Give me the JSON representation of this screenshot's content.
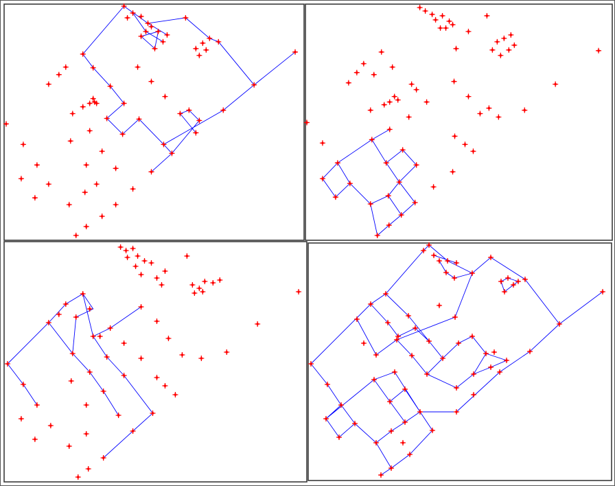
{
  "chart_data": [
    {
      "type": "scatter",
      "xlim": [
        0,
        438
      ],
      "ylim": [
        0,
        345
      ],
      "series": [
        {
          "type": "scatter",
          "color": "#ff0000",
          "x": [
            175,
            180,
            188,
            200,
            210,
            207,
            215,
            225,
            238,
            232,
            200,
            220,
            265,
            300,
            290,
            280,
            295,
            285,
            313,
            115,
            130,
            90,
            80,
            65,
            155,
            130,
            125,
            132,
            115,
            100,
            135,
            175,
            150,
            173,
            197,
            215,
            195,
            235,
            270,
            257,
            285,
            280,
            320,
            365,
            425,
            233,
            245,
            215,
            3,
            28,
            48,
            25,
            65,
            45,
            95,
            97,
            125,
            120,
            143,
            163,
            135,
            118,
            163,
            143,
            120,
            105,
            188
          ],
          "y": [
            342,
            325,
            332,
            327,
            317,
            305,
            312,
            305,
            300,
            290,
            298,
            280,
            325,
            295,
            288,
            280,
            278,
            270,
            290,
            272,
            252,
            253,
            242,
            228,
            225,
            207,
            200,
            202,
            195,
            185,
            200,
            200,
            178,
            155,
            177,
            232,
            253,
            210,
            190,
            185,
            175,
            157,
            190,
            227,
            275,
            140,
            127,
            100,
            170,
            140,
            110,
            90,
            82,
            62,
            52,
            145,
            160,
            110,
            130,
            105,
            82,
            70,
            52,
            35,
            20,
            7,
            75
          ]
        },
        {
          "type": "line",
          "color": "#0000ff",
          "x": [
            175,
            115,
            130,
            155,
            175,
            150,
            173,
            197,
            233,
            245,
            285,
            270,
            257,
            280,
            null,
            175,
            210,
            238,
            null,
            188,
            207,
            232,
            null,
            200,
            225,
            220,
            200,
            null,
            210,
            265,
            300,
            313,
            365,
            425,
            null,
            365,
            320,
            233,
            null,
            245,
            215
          ],
          "y": [
            342,
            272,
            252,
            225,
            200,
            178,
            155,
            177,
            140,
            127,
            175,
            190,
            185,
            157,
            null,
            342,
            317,
            300,
            null,
            332,
            305,
            290,
            null,
            298,
            305,
            280,
            298,
            null,
            317,
            325,
            295,
            290,
            227,
            275,
            null,
            227,
            190,
            140,
            null,
            127,
            100
          ]
        }
      ]
    },
    {
      "type": "scatter",
      "xlim": [
        0,
        448
      ],
      "ylim": [
        0,
        345
      ],
      "series": [
        {
          "type": "scatter",
          "color": "#ff0000",
          "x": [
            167,
            175,
            185,
            200,
            210,
            190,
            197,
            205,
            215,
            238,
            265,
            220,
            280,
            290,
            300,
            273,
            285,
            297,
            305,
            428,
            111,
            85,
            75,
            63,
            100,
            127,
            217,
            155,
            162,
            130,
            123,
            135,
            115,
            95,
            151,
            177,
            238,
            268,
            255,
            282,
            320,
            365,
            2,
            25,
            123,
            97,
            47,
            25,
            65,
            44,
            118,
            142,
            162,
            137,
            95,
            121,
            160,
            140,
            122,
            105,
            218,
            233,
            245,
            215,
            187
          ],
          "y": [
            340,
            335,
            330,
            328,
            320,
            322,
            310,
            310,
            315,
            305,
            328,
            280,
            290,
            295,
            300,
            278,
            270,
            278,
            285,
            277,
            275,
            258,
            245,
            230,
            242,
            253,
            232,
            228,
            220,
            210,
            202,
            205,
            198,
            190,
            180,
            202,
            210,
            193,
            185,
            180,
            190,
            228,
            172,
            142,
            162,
            147,
            113,
            90,
            83,
            63,
            113,
            132,
            110,
            85,
            53,
            65,
            55,
            37,
            22,
            7,
            152,
            140,
            130,
            100,
            78
          ]
        },
        {
          "type": "line",
          "color": "#0000ff",
          "x": [
            123,
            97,
            47,
            25,
            44,
            65,
            47,
            null,
            97,
            118,
            137,
            160,
            140,
            122,
            105,
            95,
            121,
            140,
            null,
            118,
            142,
            162,
            137,
            121,
            null,
            95,
            65
          ],
          "y": [
            162,
            147,
            113,
            90,
            63,
            83,
            113,
            null,
            147,
            113,
            85,
            55,
            37,
            22,
            7,
            53,
            65,
            37,
            null,
            113,
            132,
            110,
            85,
            65,
            null,
            53,
            83
          ]
        }
      ]
    },
    {
      "type": "scatter",
      "xlim": [
        0,
        442
      ],
      "ylim": [
        0,
        350
      ],
      "series": [
        {
          "type": "scatter",
          "color": "#ff0000",
          "x": [
            170,
            178,
            188,
            180,
            195,
            205,
            192,
            215,
            200,
            267,
            235,
            223,
            230,
            275,
            285,
            293,
            305,
            315,
            278,
            290,
            430,
            115,
            90,
            80,
            65,
            105,
            125,
            200,
            155,
            130,
            140,
            175,
            223,
            240,
            150,
            200,
            100,
            125,
            175,
            260,
            288,
            325,
            370,
            5,
            28,
            48,
            25,
            68,
            45,
            95,
            98,
            120,
            145,
            223,
            235,
            250,
            217,
            188,
            167,
            120,
            145,
            123,
            108
          ],
          "y": [
            342,
            337,
            340,
            327,
            329,
            322,
            314,
            319,
            302,
            329,
            307,
            297,
            287,
            287,
            282,
            292,
            290,
            294,
            275,
            277,
            277,
            274,
            259,
            244,
            232,
            240,
            252,
            255,
            224,
            212,
            212,
            202,
            234,
            209,
            182,
            180,
            187,
            160,
            155,
            185,
            180,
            189,
            230,
            172,
            142,
            112,
            92,
            82,
            62,
            52,
            147,
            112,
            132,
            152,
            140,
            127,
            100,
            74,
            97,
            70,
            35,
            19,
            7
          ]
        },
        {
          "type": "line",
          "color": "#0000ff",
          "x": [
            5,
            65,
            90,
            115,
            130,
            105,
            100,
            125,
            145,
            167,
            null,
            5,
            28,
            48,
            null,
            65,
            100,
            null,
            115,
            130,
            150,
            175,
            217,
            188,
            145,
            null,
            130,
            155,
            200
          ],
          "y": [
            172,
            232,
            259,
            274,
            252,
            240,
            187,
            160,
            132,
            97,
            null,
            172,
            142,
            112,
            null,
            232,
            187,
            null,
            274,
            212,
            182,
            155,
            100,
            74,
            35,
            null,
            212,
            224,
            255
          ]
        }
      ]
    },
    {
      "type": "scatter",
      "xlim": [
        0,
        442
      ],
      "ylim": [
        0,
        346
      ],
      "series": [
        {
          "type": "scatter",
          "color": "#ff0000",
          "x": [
            176,
            168,
            183,
            191,
            203,
            216,
            201,
            213,
            239,
            266,
            281,
            291,
            299,
            306,
            286,
            316,
            429,
            366,
            323,
            279,
            4,
            28,
            48,
            26,
            68,
            45,
            96,
            126,
            141,
            119,
            99,
            121,
            141,
            163,
            181,
            138,
            148,
            121,
            106,
            71,
            91,
            113,
            99,
            131,
            151,
            156,
            176,
            173,
            196,
            216,
            241,
            259,
            271,
            266,
            289,
            219,
            239,
            214,
            191,
            216,
            241,
            129,
            81,
            116,
            146
          ],
          "y": [
            343,
            335,
            328,
            320,
            320,
            317,
            303,
            295,
            302,
            325,
            290,
            295,
            285,
            290,
            275,
            293,
            275,
            228,
            188,
            158,
            170,
            140,
            110,
            90,
            83,
            63,
            147,
            158,
            133,
            115,
            55,
            72,
            85,
            100,
            73,
            55,
            38,
            18,
            8,
            235,
            257,
            272,
            183,
            210,
            182,
            222,
            203,
            155,
            178,
            135,
            155,
            185,
            187,
            165,
            175,
            200,
            210,
            238,
            255,
            100,
            125,
            205,
            200,
            230,
            240
          ]
        },
        {
          "type": "line",
          "color": "#0000ff",
          "x": [
            4,
            91,
            113,
            168,
            176,
            203,
            239,
            266,
            316,
            366,
            429,
            null,
            4,
            28,
            48,
            26,
            45,
            68,
            48,
            null,
            68,
            99,
            121,
            106,
            null,
            26,
            96,
            126,
            163,
            181,
            148,
            121,
            null,
            96,
            119,
            141,
            121,
            99,
            null,
            141,
            163,
            null,
            119,
            141,
            163,
            null,
            163,
            216,
            279,
            323,
            366,
            null,
            71,
            99,
            129,
            151,
            173,
            216,
            241,
            259,
            289,
            266,
            241,
            null,
            91,
            116,
            131,
            156,
            176,
            196,
            219,
            239,
            259,
            null,
            113,
            146,
            176,
            null,
            129,
            214,
            239,
            null,
            173,
            196,
            null,
            183,
            216,
            null,
            191,
            201,
            213,
            239,
            null,
            291,
            306,
            299,
            286,
            281,
            291
          ],
          "y": [
            170,
            257,
            272,
            335,
            343,
            320,
            302,
            325,
            293,
            228,
            275,
            null,
            170,
            140,
            110,
            90,
            63,
            83,
            110,
            null,
            83,
            55,
            18,
            8,
            null,
            90,
            147,
            158,
            100,
            73,
            38,
            18,
            null,
            147,
            115,
            85,
            72,
            55,
            null,
            85,
            100,
            null,
            115,
            133,
            100,
            null,
            100,
            100,
            158,
            188,
            228,
            null,
            235,
            183,
            205,
            182,
            155,
            135,
            155,
            185,
            175,
            165,
            155,
            null,
            257,
            230,
            210,
            222,
            203,
            178,
            200,
            210,
            185,
            null,
            272,
            240,
            203,
            null,
            205,
            238,
            302,
            null,
            155,
            178,
            null,
            328,
            317,
            null,
            320,
            303,
            295,
            302,
            null,
            295,
            290,
            285,
            275,
            290,
            295
          ]
        }
      ]
    }
  ]
}
